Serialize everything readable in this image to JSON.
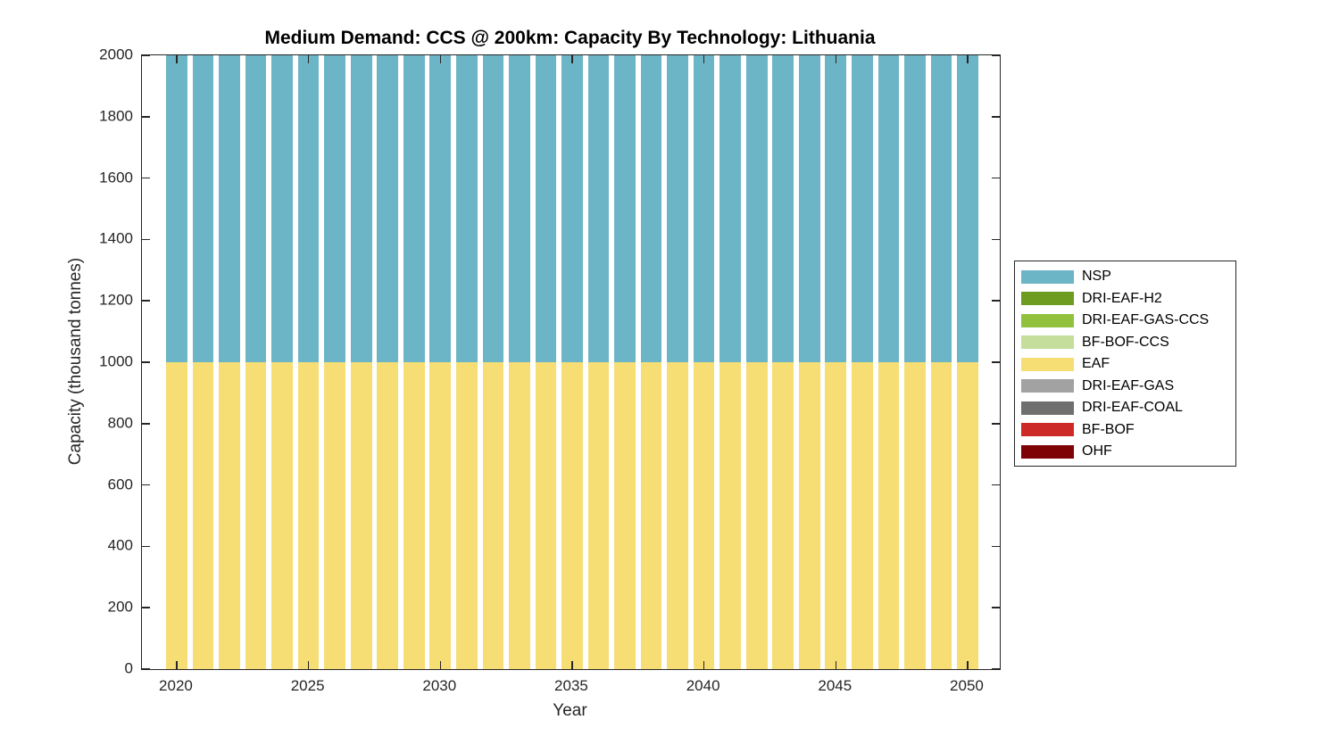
{
  "chart_data": {
    "type": "bar",
    "stacked": true,
    "title": "Medium Demand: CCS @ 200km: Capacity By Technology: Lithuania",
    "xlabel": "Year",
    "ylabel": "Capacity (thousand tonnes)",
    "x": [
      2020,
      2021,
      2022,
      2023,
      2024,
      2025,
      2026,
      2027,
      2028,
      2029,
      2030,
      2031,
      2032,
      2033,
      2034,
      2035,
      2036,
      2037,
      2038,
      2039,
      2040,
      2041,
      2042,
      2043,
      2044,
      2045,
      2046,
      2047,
      2048,
      2049,
      2050
    ],
    "series": [
      {
        "name": "NSP",
        "color": "#6CB5C6",
        "values": [
          1000,
          1000,
          1000,
          1000,
          1000,
          1000,
          1000,
          1000,
          1000,
          1000,
          1000,
          1000,
          1000,
          1000,
          1000,
          1000,
          1000,
          1000,
          1000,
          1000,
          1000,
          1000,
          1000,
          1000,
          1000,
          1000,
          1000,
          1000,
          1000,
          1000,
          1000
        ]
      },
      {
        "name": "DRI-EAF-H2",
        "color": "#6E9C20",
        "values": [
          0,
          0,
          0,
          0,
          0,
          0,
          0,
          0,
          0,
          0,
          0,
          0,
          0,
          0,
          0,
          0,
          0,
          0,
          0,
          0,
          0,
          0,
          0,
          0,
          0,
          0,
          0,
          0,
          0,
          0,
          0
        ]
      },
      {
        "name": "DRI-EAF-GAS-CCS",
        "color": "#92C23D",
        "values": [
          0,
          0,
          0,
          0,
          0,
          0,
          0,
          0,
          0,
          0,
          0,
          0,
          0,
          0,
          0,
          0,
          0,
          0,
          0,
          0,
          0,
          0,
          0,
          0,
          0,
          0,
          0,
          0,
          0,
          0,
          0
        ]
      },
      {
        "name": "BF-BOF-CCS",
        "color": "#C5DE9B",
        "values": [
          0,
          0,
          0,
          0,
          0,
          0,
          0,
          0,
          0,
          0,
          0,
          0,
          0,
          0,
          0,
          0,
          0,
          0,
          0,
          0,
          0,
          0,
          0,
          0,
          0,
          0,
          0,
          0,
          0,
          0,
          0
        ]
      },
      {
        "name": "EAF",
        "color": "#F7DE74",
        "values": [
          1000,
          1000,
          1000,
          1000,
          1000,
          1000,
          1000,
          1000,
          1000,
          1000,
          1000,
          1000,
          1000,
          1000,
          1000,
          1000,
          1000,
          1000,
          1000,
          1000,
          1000,
          1000,
          1000,
          1000,
          1000,
          1000,
          1000,
          1000,
          1000,
          1000,
          1000
        ]
      },
      {
        "name": "DRI-EAF-GAS",
        "color": "#A2A2A2",
        "values": [
          0,
          0,
          0,
          0,
          0,
          0,
          0,
          0,
          0,
          0,
          0,
          0,
          0,
          0,
          0,
          0,
          0,
          0,
          0,
          0,
          0,
          0,
          0,
          0,
          0,
          0,
          0,
          0,
          0,
          0,
          0
        ]
      },
      {
        "name": "DRI-EAF-COAL",
        "color": "#6F6F6F",
        "values": [
          0,
          0,
          0,
          0,
          0,
          0,
          0,
          0,
          0,
          0,
          0,
          0,
          0,
          0,
          0,
          0,
          0,
          0,
          0,
          0,
          0,
          0,
          0,
          0,
          0,
          0,
          0,
          0,
          0,
          0,
          0
        ]
      },
      {
        "name": "BF-BOF",
        "color": "#CC2A26",
        "values": [
          0,
          0,
          0,
          0,
          0,
          0,
          0,
          0,
          0,
          0,
          0,
          0,
          0,
          0,
          0,
          0,
          0,
          0,
          0,
          0,
          0,
          0,
          0,
          0,
          0,
          0,
          0,
          0,
          0,
          0,
          0
        ]
      },
      {
        "name": "OHF",
        "color": "#7D0305",
        "values": [
          0,
          0,
          0,
          0,
          0,
          0,
          0,
          0,
          0,
          0,
          0,
          0,
          0,
          0,
          0,
          0,
          0,
          0,
          0,
          0,
          0,
          0,
          0,
          0,
          0,
          0,
          0,
          0,
          0,
          0,
          0
        ]
      }
    ],
    "stack_order": "last-series-at-bottom",
    "bar_rel_width": 0.8,
    "xlim": [
      2018.68,
      2051.22
    ],
    "ylim": [
      0,
      2000
    ],
    "xticks": [
      2020,
      2025,
      2030,
      2035,
      2040,
      2045,
      2050
    ],
    "yticks": [
      0,
      200,
      400,
      600,
      800,
      1000,
      1200,
      1400,
      1600,
      1800,
      2000
    ],
    "grid": false,
    "legend_position": "right-outside",
    "axis_color": "#262626",
    "background_color": "#ffffff"
  }
}
